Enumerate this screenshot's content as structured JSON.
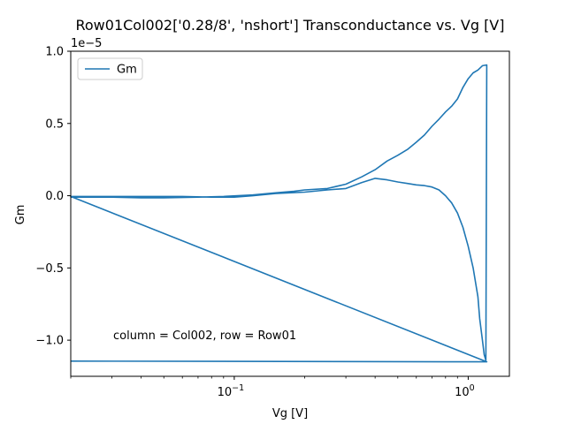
{
  "chart_data": {
    "type": "line",
    "title": "Row01Col002['0.28/8', 'nshort'] Transconductance vs. Vg [V]",
    "xlabel": "Vg [V]",
    "ylabel": "Gm",
    "x_scale": "log",
    "xlim": [
      0.02,
      1.5
    ],
    "ylim": [
      -1.25e-05,
      1e-05
    ],
    "y_offset_text": "1e−5",
    "x_ticks": [
      {
        "value": 0.1,
        "label": "10",
        "exp": "−1"
      },
      {
        "value": 1.0,
        "label": "10",
        "exp": "0"
      }
    ],
    "y_ticks": [
      {
        "value": 1e-05,
        "label": "1.0"
      },
      {
        "value": 5e-06,
        "label": "0.5"
      },
      {
        "value": 0.0,
        "label": "0.0"
      },
      {
        "value": -5e-06,
        "label": "−0.5"
      },
      {
        "value": -1e-05,
        "label": "−1.0"
      }
    ],
    "legend": {
      "position": "top-left",
      "entries": [
        "Gm"
      ]
    },
    "annotation": "column = Col002, row = Row01",
    "grid": false,
    "series": [
      {
        "name": "Gm",
        "color": "#1f77b4",
        "points": [
          [
            0.02,
            -1e-07
          ],
          [
            0.03,
            -1e-07
          ],
          [
            0.04,
            -1.5e-07
          ],
          [
            0.05,
            -1.5e-07
          ],
          [
            0.07,
            -1e-07
          ],
          [
            0.09,
            -5e-08
          ],
          [
            0.12,
            5e-08
          ],
          [
            0.15,
            2e-07
          ],
          [
            0.18,
            3e-07
          ],
          [
            0.2,
            4e-07
          ],
          [
            0.25,
            5e-07
          ],
          [
            0.3,
            8e-07
          ],
          [
            0.35,
            1.3e-06
          ],
          [
            0.4,
            1.8e-06
          ],
          [
            0.45,
            2.4e-06
          ],
          [
            0.5,
            2.8e-06
          ],
          [
            0.55,
            3.2e-06
          ],
          [
            0.6,
            3.7e-06
          ],
          [
            0.65,
            4.2e-06
          ],
          [
            0.7,
            4.8e-06
          ],
          [
            0.75,
            5.3e-06
          ],
          [
            0.8,
            5.8e-06
          ],
          [
            0.85,
            6.2e-06
          ],
          [
            0.9,
            6.7e-06
          ],
          [
            0.95,
            7.5e-06
          ],
          [
            1.0,
            8.1e-06
          ],
          [
            1.05,
            8.5e-06
          ],
          [
            1.1,
            8.7e-06
          ],
          [
            1.15,
            9e-06
          ],
          [
            1.2,
            9.05e-06
          ],
          [
            1.19,
            -1.14e-05
          ],
          [
            1.17,
            -1.1e-05
          ],
          [
            1.15,
            -1e-05
          ],
          [
            1.12,
            -8.5e-06
          ],
          [
            1.1,
            -7e-06
          ],
          [
            1.05,
            -5e-06
          ],
          [
            1.0,
            -3.5e-06
          ],
          [
            0.95,
            -2.2e-06
          ],
          [
            0.9,
            -1.2e-06
          ],
          [
            0.85,
            -5e-07
          ],
          [
            0.8,
            0.0
          ],
          [
            0.75,
            4e-07
          ],
          [
            0.7,
            6e-07
          ],
          [
            0.65,
            7e-07
          ],
          [
            0.6,
            7.5e-07
          ],
          [
            0.55,
            8.5e-07
          ],
          [
            0.5,
            9.5e-07
          ],
          [
            0.45,
            1.1e-06
          ],
          [
            0.4,
            1.2e-06
          ],
          [
            0.35,
            9e-07
          ],
          [
            0.3,
            5e-07
          ],
          [
            0.25,
            4e-07
          ],
          [
            0.2,
            2.5e-07
          ],
          [
            0.15,
            1.5e-07
          ],
          [
            0.12,
            0.0
          ],
          [
            0.1,
            -1e-07
          ],
          [
            0.08,
            -1e-07
          ],
          [
            0.06,
            -5e-08
          ],
          [
            0.05,
            -5e-08
          ],
          [
            0.04,
            -5e-08
          ],
          [
            0.03,
            -5e-08
          ],
          [
            0.02,
            -5e-08
          ],
          [
            1.2,
            -1.15e-05
          ],
          [
            0.02,
            -1.145e-05
          ]
        ]
      }
    ]
  }
}
